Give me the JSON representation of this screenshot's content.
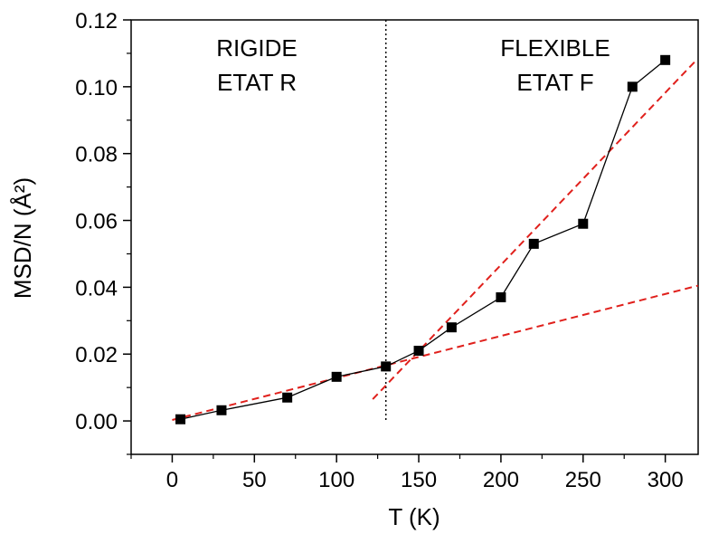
{
  "chart_data": {
    "type": "scatter",
    "xlabel": "T (K)",
    "ylabel": "MSD/N (Å²)",
    "xlim": [
      -25,
      320
    ],
    "ylim": [
      -0.01,
      0.12
    ],
    "xticks": [
      0,
      50,
      100,
      150,
      200,
      250,
      300
    ],
    "xtick_labels": [
      "0",
      "50",
      "100",
      "150",
      "200",
      "250",
      "300"
    ],
    "yticks": [
      0.0,
      0.02,
      0.04,
      0.06,
      0.08,
      0.1,
      0.12
    ],
    "ytick_labels": [
      "0.00",
      "0.02",
      "0.04",
      "0.06",
      "0.08",
      "0.10",
      "0.12"
    ],
    "grid": false,
    "series": [
      {
        "color": "#000000",
        "marker": "square",
        "connected": true,
        "x": [
          5,
          30,
          70,
          100,
          130,
          150,
          170,
          200,
          220,
          250,
          280,
          300
        ],
        "y": [
          0.0005,
          0.0032,
          0.007,
          0.0132,
          0.0163,
          0.021,
          0.028,
          0.037,
          0.053,
          0.059,
          0.1,
          0.108
        ]
      }
    ],
    "fit_lines": [
      {
        "style": "dashed",
        "color": "#e0201c",
        "x": [
          0,
          320
        ],
        "y": [
          0.0003,
          0.0405
        ]
      },
      {
        "style": "dashed",
        "color": "#e0201c",
        "x": [
          122,
          318
        ],
        "y": [
          0.0065,
          0.1075
        ]
      }
    ],
    "reference_lines": [
      {
        "orientation": "vertical",
        "style": "dotted",
        "color": "#000000",
        "x": 130
      }
    ],
    "annotations": [
      {
        "lines": [
          "RIGIDE",
          "ETAT R"
        ]
      },
      {
        "lines": [
          "FLEXIBLE",
          "ETAT F"
        ]
      }
    ]
  }
}
